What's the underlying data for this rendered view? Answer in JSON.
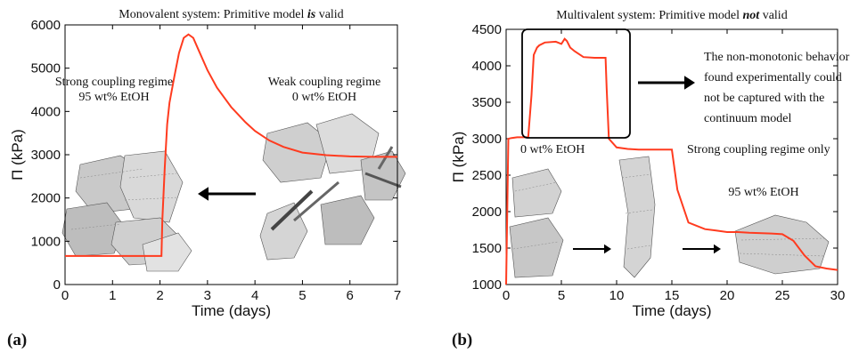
{
  "chart_data": [
    {
      "type": "line",
      "panel_label": "(a)",
      "title": "Monovalent system: Primitive model is valid",
      "title_parts": [
        "Monovalent system: Primitive model ",
        "is",
        " valid"
      ],
      "xlabel": "Time (days)",
      "ylabel": "Π (kPa)",
      "xlim": [
        0,
        7
      ],
      "ylim": [
        0,
        6000
      ],
      "xticks": [
        "0",
        "1",
        "2",
        "3",
        "4",
        "5",
        "6",
        "7"
      ],
      "yticks": [
        "0",
        "1000",
        "2000",
        "3000",
        "4000",
        "5000",
        "6000"
      ],
      "series": [
        {
          "color": "#ff3b1f",
          "x": [
            0,
            2.03,
            2.05,
            2.1,
            2.15,
            2.2,
            2.3,
            2.4,
            2.5,
            2.6,
            2.7,
            2.8,
            3.0,
            3.2,
            3.5,
            3.8,
            4.0,
            4.3,
            4.6,
            5.0,
            5.5,
            6.0,
            6.5,
            7.0
          ],
          "y": [
            660,
            660,
            1500,
            2700,
            3700,
            4200,
            4800,
            5350,
            5700,
            5780,
            5700,
            5450,
            4950,
            4550,
            4100,
            3750,
            3550,
            3330,
            3180,
            3050,
            2990,
            2960,
            2950,
            2950
          ]
        }
      ],
      "annotations": {
        "left_label": [
          "Strong coupling regime",
          "95 wt% EtOH"
        ],
        "right_label": [
          "Weak coupling regime",
          "0 wt% EtOH"
        ],
        "arrow": "right-to-left"
      }
    },
    {
      "type": "line",
      "panel_label": "(b)",
      "title": "Multivalent system: Primitive model not valid",
      "title_parts": [
        "Multivalent system: Primitive model ",
        "not",
        " valid"
      ],
      "xlabel": "Time (days)",
      "ylabel": "Π (kPa)",
      "xlim": [
        0,
        30
      ],
      "ylim": [
        1000,
        4500
      ],
      "xticks": [
        "0",
        "5",
        "10",
        "15",
        "20",
        "25",
        "30"
      ],
      "yticks": [
        "1000",
        "1500",
        "2000",
        "2500",
        "3000",
        "3500",
        "4000",
        "4500"
      ],
      "series": [
        {
          "color": "#ff3b1f",
          "x": [
            0,
            0.2,
            0.5,
            1.0,
            2.0,
            2.3,
            2.5,
            2.8,
            3.0,
            3.5,
            4.5,
            5.0,
            5.3,
            5.5,
            5.8,
            6.2,
            7.0,
            8.0,
            9.0,
            9.1,
            9.3,
            10.0,
            11.0,
            12.0,
            14.0,
            15.0,
            15.5,
            16.5,
            18.0,
            19.0,
            20.0,
            21.0,
            22.0,
            24.0,
            25.0,
            26.0,
            27.0,
            28.0,
            29.0,
            30.0
          ],
          "y": [
            1000,
            3000,
            3010,
            3020,
            3020,
            3600,
            4150,
            4250,
            4280,
            4320,
            4330,
            4300,
            4370,
            4340,
            4250,
            4200,
            4120,
            4110,
            4110,
            3700,
            3000,
            2880,
            2860,
            2850,
            2850,
            2850,
            2300,
            1850,
            1760,
            1740,
            1720,
            1720,
            1710,
            1700,
            1690,
            1600,
            1400,
            1250,
            1220,
            1200
          ]
        }
      ],
      "annotations": {
        "box_note": [
          "The non-monotonic behavior",
          "found experimentally could",
          "not be captured with the",
          "continuum model"
        ],
        "left_label": "0 wt% EtOH",
        "regime_label": "Strong coupling regime only",
        "right_label": "95 wt% EtOH"
      }
    }
  ]
}
